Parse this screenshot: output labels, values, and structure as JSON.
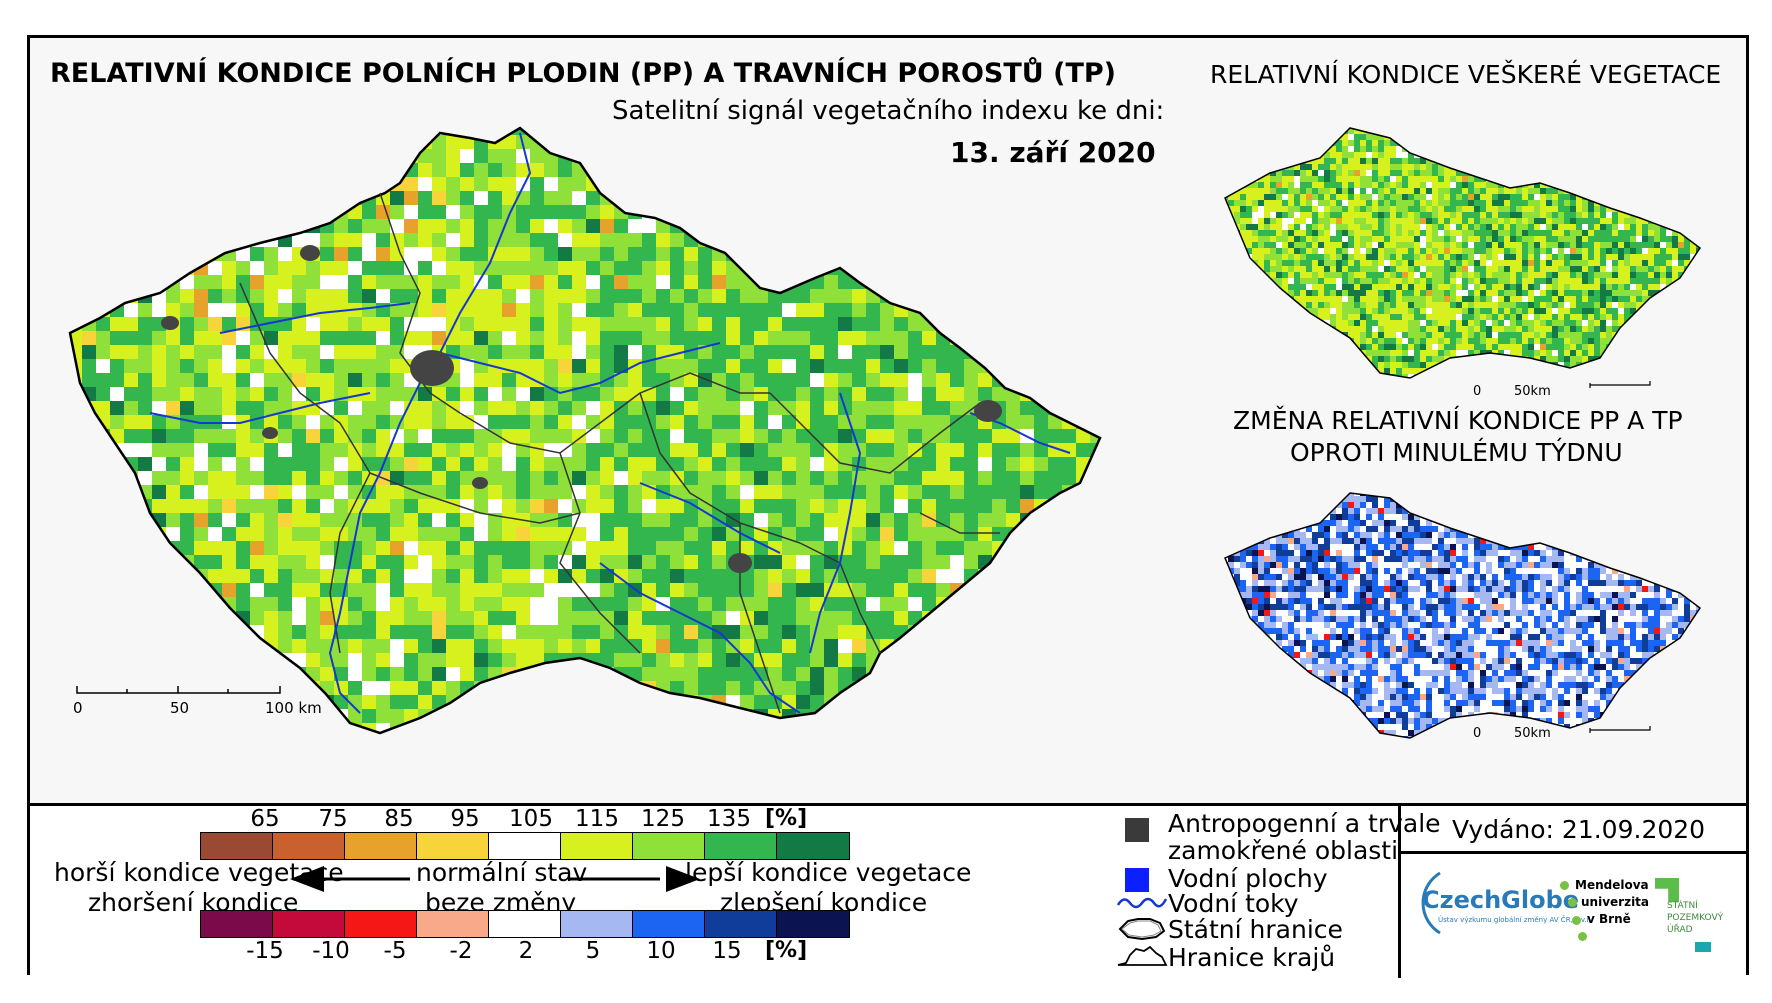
{
  "header": {
    "main_title": "RELATIVNÍ KONDICE POLNÍCH PLODIN (PP) A TRAVNÍCH POROSTŮ (TP)",
    "signal_label": "Satelitní signál vegetačního indexu ke dni:",
    "date": "13. září 2020"
  },
  "inset_vegetation": {
    "title": "RELATIVNÍ KONDICE VEŠKERÉ VEGETACE",
    "scale_0": "0",
    "scale_max": "50km"
  },
  "inset_change": {
    "title_line1": "ZMĚNA RELATIVNÍ KONDICE PP A TP",
    "title_line2": "OPROTI MINULÉMU TÝDNU",
    "scale_0": "0",
    "scale_max": "50km"
  },
  "main_map": {
    "scale_labels": [
      "0",
      "50",
      "100 km"
    ]
  },
  "legend_condition": {
    "ticks": [
      "65",
      "75",
      "85",
      "95",
      "105",
      "115",
      "125",
      "135"
    ],
    "unit": "[%]",
    "colors": [
      "#9a4a32",
      "#c8612d",
      "#e6a22a",
      "#f6d43a",
      "#ffffff",
      "#d6f11e",
      "#90e03a",
      "#33b64e",
      "#137a45"
    ]
  },
  "legend_change": {
    "ticks": [
      "-15",
      "-10",
      "-5",
      "-2",
      "2",
      "5",
      "10",
      "15"
    ],
    "unit": "[%]",
    "colors": [
      "#7a0a4a",
      "#c40a3a",
      "#f51616",
      "#f7a98a",
      "#ffffff",
      "#a6b8f2",
      "#1c64f2",
      "#103c9a",
      "#0b1450"
    ]
  },
  "legend_arrows": {
    "left_line1": "horší kondice vegetace",
    "left_line2": "zhoršení kondice",
    "center_line1": "normální stav",
    "center_line2": "beze změny",
    "right_line1": "lepší kondice vegetace",
    "right_line2": "zlepšení kondice"
  },
  "legend_key": {
    "anthropogenic_line1": "Antropogenní a trvale",
    "anthropogenic_line2": "zamokřené oblasti",
    "water_bodies": "Vodní plochy",
    "water_streams": "Vodní toky",
    "state_border": "Státní hranice",
    "region_border": "Hranice krajů"
  },
  "issued": "Vydáno: 21.09.2020",
  "logos": {
    "czechglobe": "CzechGlobe",
    "czechglobe_sub": "Ústav výzkumu globální změny AV ČR, v.v.i.",
    "mendel_line1": "Mendelova",
    "mendel_line2": "univerzita",
    "mendel_line3": "v Brně",
    "spu_line1": "STÁTNÍ",
    "spu_line2": "POZEMKOVÝ",
    "spu_line3": "ÚŘAD"
  }
}
